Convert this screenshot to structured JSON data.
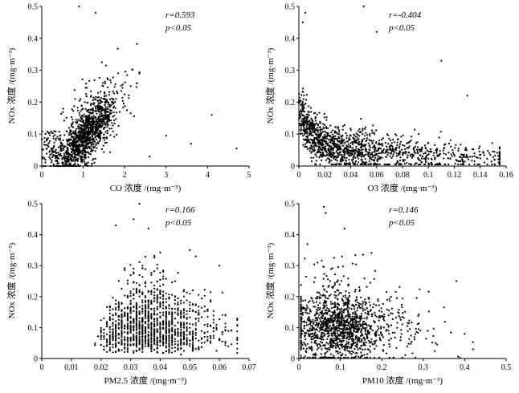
{
  "chart_data": [
    {
      "type": "scatter",
      "id": "co",
      "xlabel": "CO 浓度 /(mg·m⁻³)",
      "ylabel": "NOx 浓度 /(mg·m⁻³)",
      "xlim": [
        0,
        5
      ],
      "ylim": [
        0,
        0.5
      ],
      "xticks": [
        0,
        1,
        2,
        3,
        4,
        5
      ],
      "xtick_labels": [
        "0",
        "1",
        "2",
        "3",
        "4",
        "5"
      ],
      "yticks": [
        0,
        0.1,
        0.2,
        0.3,
        0.4,
        0.5
      ],
      "ytick_labels": [
        "0",
        "0.1",
        "0.2",
        "0.3",
        "0.4",
        "0.5"
      ],
      "annotations": [
        "r=0.593",
        "p<0.05"
      ],
      "outliers": [
        [
          4.7,
          0.055
        ],
        [
          4.1,
          0.16
        ],
        [
          3.6,
          0.07
        ],
        [
          3.0,
          0.095
        ],
        [
          2.6,
          0.03
        ],
        [
          0.9,
          0.5
        ],
        [
          1.3,
          0.48
        ]
      ]
    },
    {
      "type": "scatter",
      "id": "o3",
      "xlabel": "O3 浓度 /(mg·m⁻³)",
      "ylabel": "NOx 浓度 /(mg·m⁻³)",
      "xlim": [
        0,
        0.16
      ],
      "ylim": [
        0,
        0.5
      ],
      "xticks": [
        0,
        0.02,
        0.04,
        0.06,
        0.08,
        0.1,
        0.12,
        0.14,
        0.16
      ],
      "xtick_labels": [
        "0",
        "0.02",
        "0.04",
        "0.06",
        "0.08",
        "0.1",
        "0.12",
        "0.14",
        "0.16"
      ],
      "yticks": [
        0,
        0.1,
        0.2,
        0.3,
        0.4,
        0.5
      ],
      "ytick_labels": [
        "0",
        "0.1",
        "0.2",
        "0.3",
        "0.4",
        "0.5"
      ],
      "annotations": [
        "r=-0.404",
        "p<0.05"
      ],
      "outliers": [
        [
          0.05,
          0.5
        ],
        [
          0.06,
          0.42
        ],
        [
          0.11,
          0.33
        ],
        [
          0.13,
          0.22
        ],
        [
          0.005,
          0.48
        ],
        [
          0.003,
          0.45
        ]
      ]
    },
    {
      "type": "scatter",
      "id": "pm25",
      "xlabel": "PM2.5 浓度 /(mg·m⁻³)",
      "ylabel": "NOx 浓度 /(mg·m⁻³)",
      "xlim": [
        0,
        0.07
      ],
      "ylim": [
        0,
        0.5
      ],
      "xticks": [
        0,
        0.01,
        0.02,
        0.03,
        0.04,
        0.05,
        0.06,
        0.07
      ],
      "xtick_labels": [
        "0",
        "0.01",
        "0.02",
        "0.03",
        "0.04",
        "0.05",
        "0.06",
        "0.07"
      ],
      "yticks": [
        0,
        0.1,
        0.2,
        0.3,
        0.4,
        0.5
      ],
      "ytick_labels": [
        "0",
        "0.1",
        "0.2",
        "0.3",
        "0.4",
        "0.5"
      ],
      "annotations": [
        "r=0.166",
        "p<0.05"
      ],
      "outliers": [
        [
          0.033,
          0.5
        ],
        [
          0.031,
          0.45
        ],
        [
          0.025,
          0.43
        ],
        [
          0.036,
          0.42
        ],
        [
          0.05,
          0.35
        ],
        [
          0.052,
          0.33
        ],
        [
          0.06,
          0.3
        ]
      ]
    },
    {
      "type": "scatter",
      "id": "pm10",
      "xlabel": "PM10 浓度 /(mg·m⁻³)",
      "ylabel": "NOx 浓度 /(mg·m⁻³)",
      "xlim": [
        0,
        0.5
      ],
      "ylim": [
        0,
        0.5
      ],
      "xticks": [
        0,
        0.1,
        0.2,
        0.3,
        0.4,
        0.5
      ],
      "xtick_labels": [
        "0",
        "0.1",
        "0.2",
        "0.3",
        "0.4",
        "0.5"
      ],
      "yticks": [
        0,
        0.1,
        0.2,
        0.3,
        0.4,
        0.5
      ],
      "ytick_labels": [
        "0",
        "0.1",
        "0.2",
        "0.3",
        "0.4",
        "0.5"
      ],
      "annotations": [
        "r=0.146",
        "p<0.05"
      ],
      "outliers": [
        [
          0.06,
          0.49
        ],
        [
          0.065,
          0.47
        ],
        [
          0.11,
          0.42
        ],
        [
          0.42,
          0.03
        ],
        [
          0.4,
          0.08
        ],
        [
          0.38,
          0.25
        ],
        [
          0.33,
          0.05
        ]
      ]
    }
  ]
}
